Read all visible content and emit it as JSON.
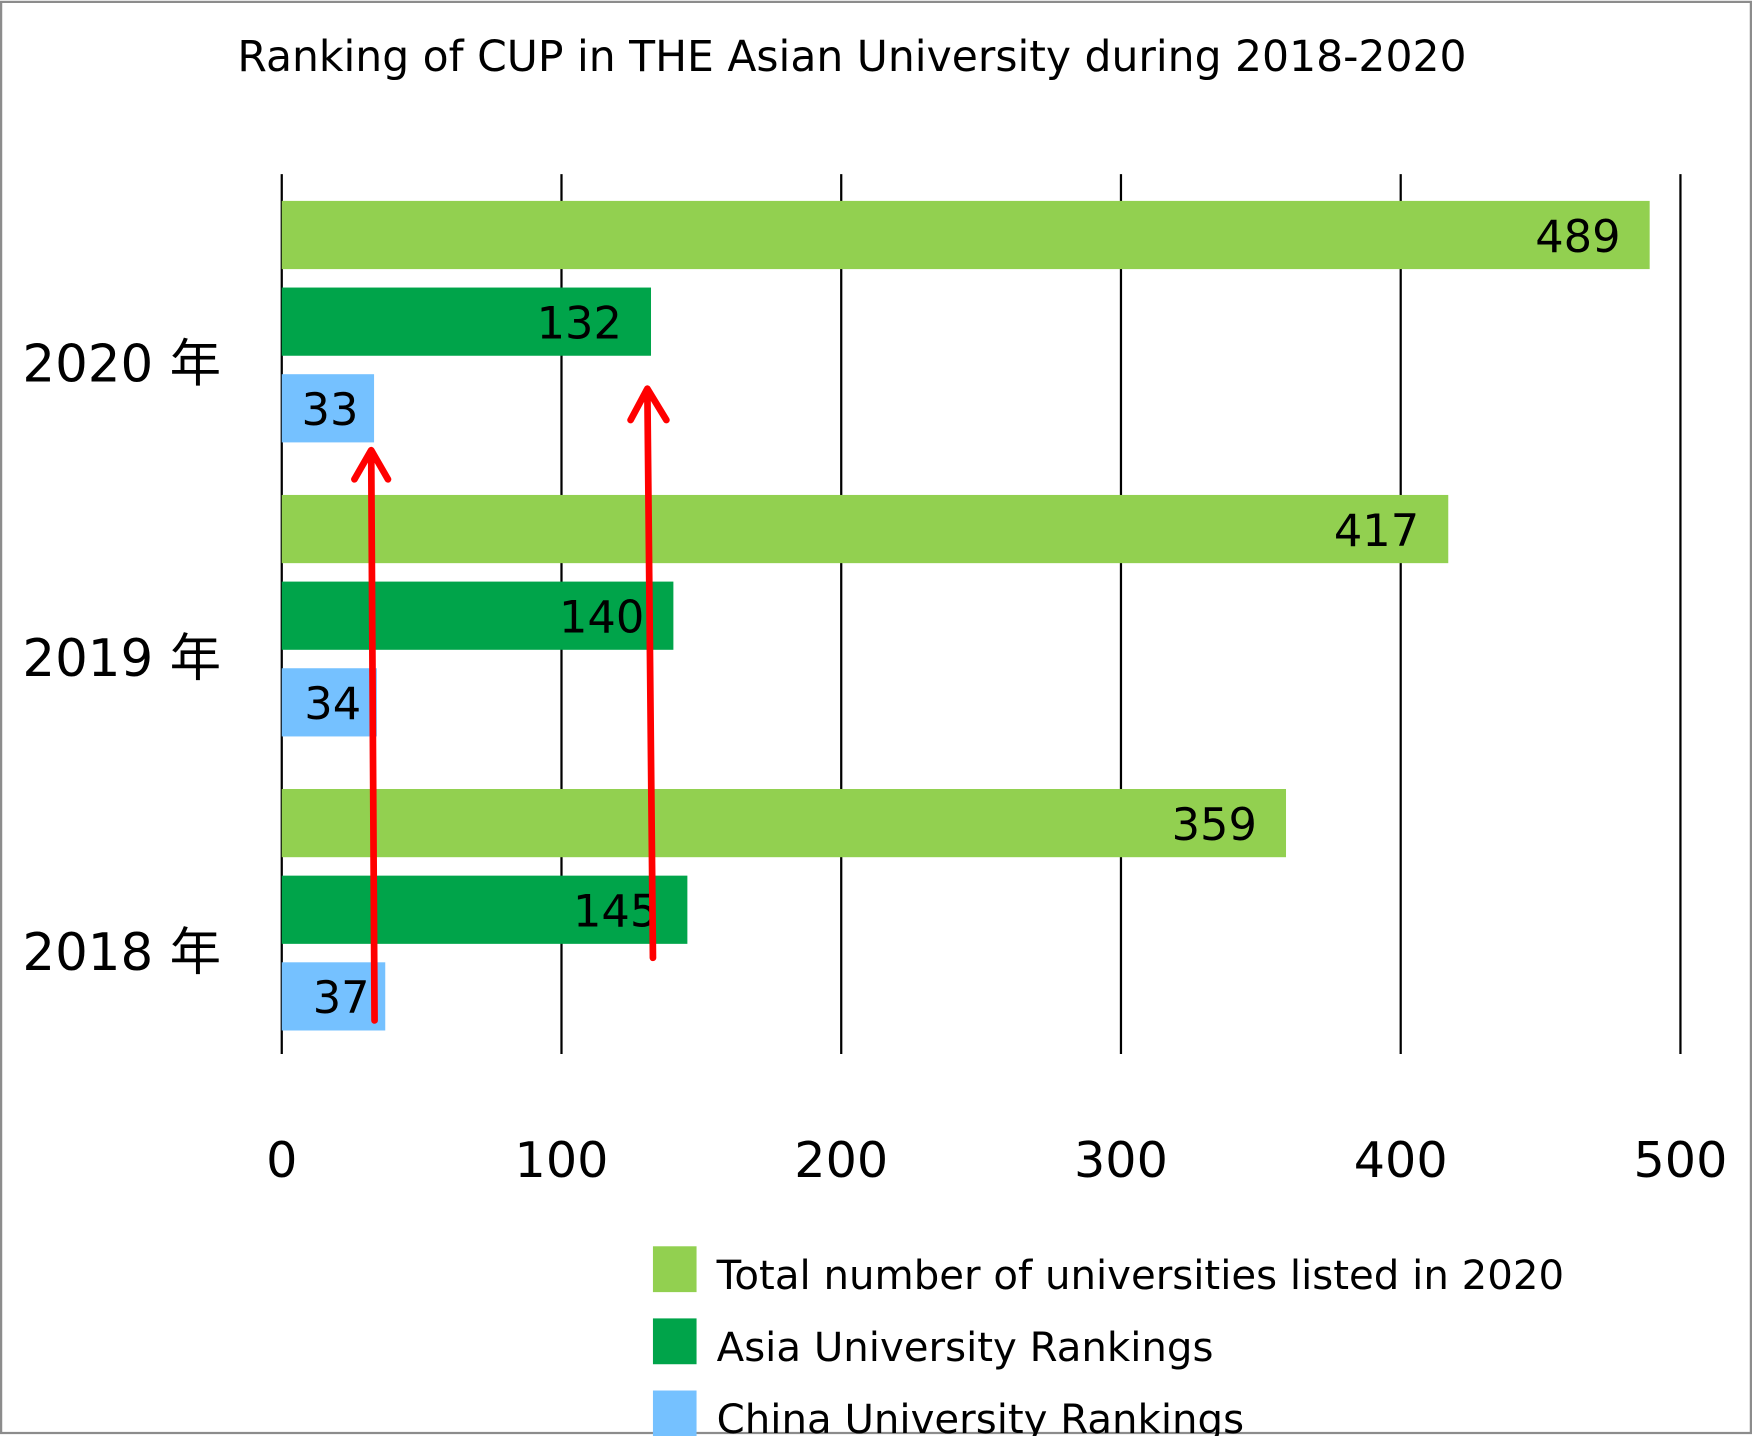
{
  "chart_data": {
    "type": "bar",
    "orientation": "horizontal",
    "title": "Ranking of CUP in THE Asian University during 2018-2020",
    "categories": [
      "2020 年",
      "2019 年",
      "2018 年"
    ],
    "series": [
      {
        "name": "Total number of universities listed in 2020",
        "color": "#92d050",
        "values": [
          489,
          417,
          359
        ]
      },
      {
        "name": "Asia University Rankings",
        "color": "#00a44a",
        "values": [
          132,
          140,
          145
        ]
      },
      {
        "name": "China University Rankings",
        "color": "#75c1ff",
        "values": [
          33,
          34,
          37
        ]
      }
    ],
    "xlim": [
      0,
      500
    ],
    "xticks": [
      "0",
      "100",
      "200",
      "300",
      "400",
      "500"
    ],
    "grid": true,
    "legend": "bottom",
    "annotations": {
      "arrows": "red upward arrows over China and Asia ranking bars",
      "arrow_color": "#ff0000"
    }
  }
}
